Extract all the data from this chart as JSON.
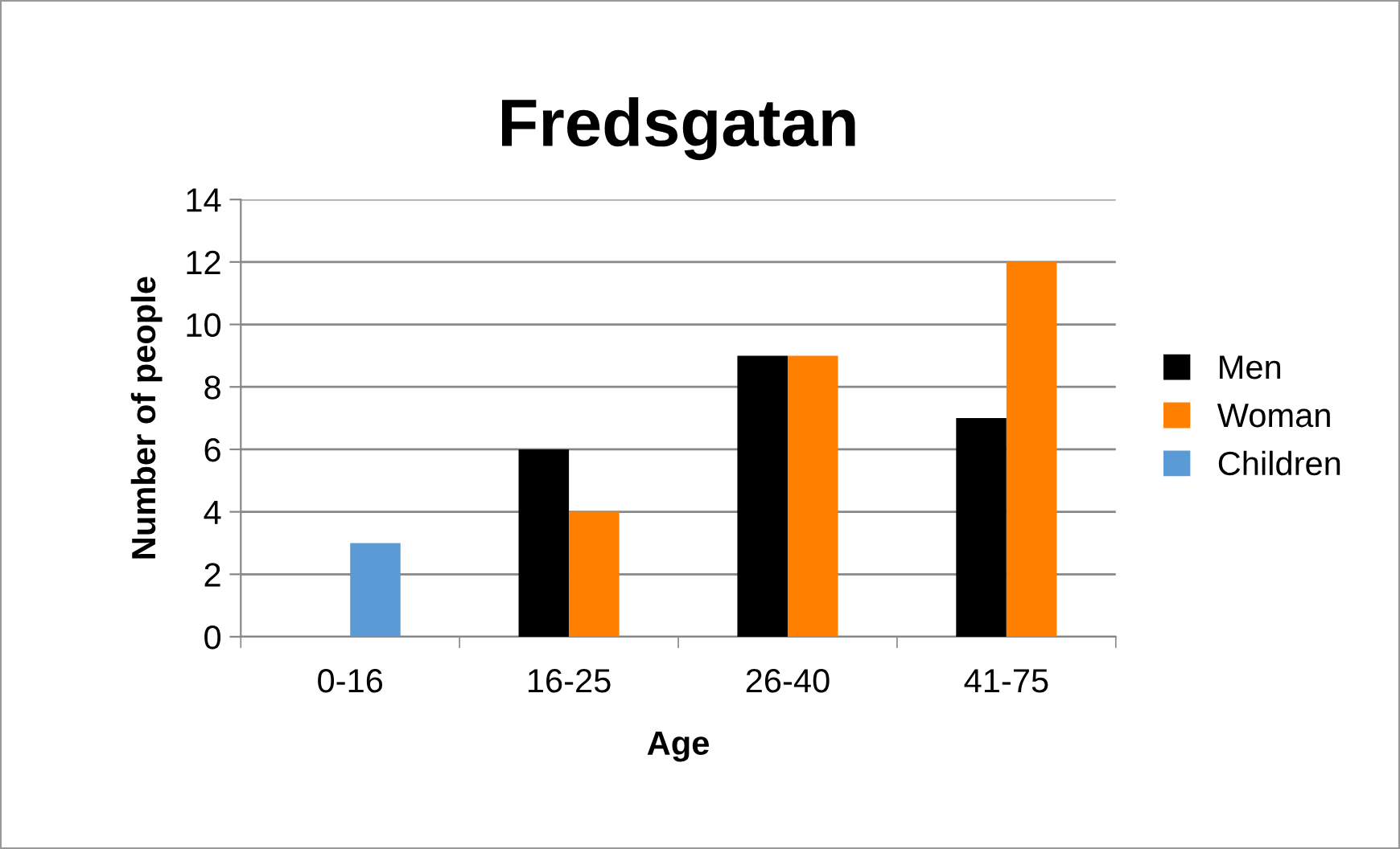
{
  "chart_data": {
    "type": "bar",
    "title": "Fredsgatan",
    "xlabel": "Age",
    "ylabel": "Number of people",
    "categories": [
      "0-16",
      "16-25",
      "26-40",
      "41-75"
    ],
    "series": [
      {
        "name": "Men",
        "color": "#000000",
        "values": [
          null,
          6,
          9,
          7
        ]
      },
      {
        "name": "Woman",
        "color": "#ff7f00",
        "values": [
          null,
          4,
          9,
          12
        ]
      },
      {
        "name": "Children",
        "color": "#5b9bd5",
        "values": [
          3,
          null,
          null,
          null
        ]
      }
    ],
    "ylim": [
      0,
      14
    ],
    "yticks": [
      0,
      2,
      4,
      6,
      8,
      10,
      12,
      14
    ],
    "grid": "y",
    "legend": "right"
  }
}
